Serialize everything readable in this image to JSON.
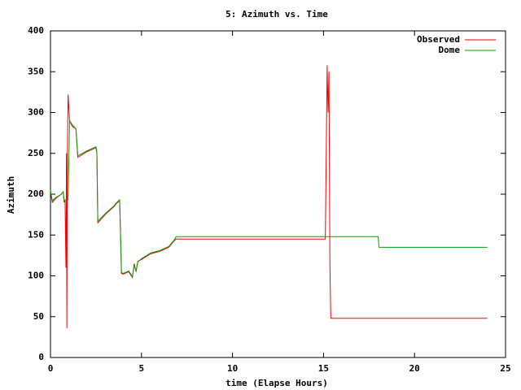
{
  "chart_data": {
    "type": "line",
    "title": "5: Azimuth vs. Time",
    "x_label": "time (Elapse Hours)",
    "y_label": "Azimuth",
    "x": [
      0,
      0.1,
      0.3,
      0.6,
      0.7,
      0.75,
      0.8,
      0.85,
      0.88,
      0.9,
      0.93,
      0.97,
      1.05,
      1.2,
      1.4,
      1.5,
      2.0,
      2.5,
      2.55,
      2.6,
      3.0,
      3.5,
      3.6,
      3.8,
      3.85,
      3.9,
      4.0,
      4.3,
      4.5,
      4.6,
      4.7,
      4.8,
      5.0,
      5.5,
      6.0,
      6.5,
      6.8,
      6.9,
      15.1,
      15.15,
      15.2,
      15.25,
      15.3,
      15.35,
      15.4,
      18.0,
      18.05,
      24
    ],
    "series": [
      {
        "name": "Observed",
        "color": "#ff0000",
        "values": [
          203,
          190,
          195,
          200,
          203,
          190,
          193,
          110,
          250,
          36,
          250,
          322,
          290,
          283,
          280,
          245,
          252,
          257,
          250,
          165,
          175,
          185,
          188,
          192,
          150,
          103,
          102,
          105,
          98,
          115,
          105,
          118,
          120,
          127,
          130,
          135,
          143,
          145,
          145,
          250,
          358,
          300,
          350,
          115,
          48,
          48,
          48,
          48
        ]
      },
      {
        "name": "Dome",
        "color": "#00a000",
        "values": [
          205,
          192,
          196,
          200,
          203,
          192,
          193,
          193,
          193,
          193,
          193,
          193,
          290,
          285,
          280,
          247,
          253,
          258,
          252,
          167,
          176,
          186,
          189,
          193,
          150,
          104,
          103,
          106,
          99,
          113,
          106,
          117,
          121,
          128,
          131,
          136,
          144,
          148,
          148,
          148,
          148,
          148,
          148,
          148,
          148,
          148,
          135,
          135
        ]
      }
    ],
    "xlim": [
      0,
      25
    ],
    "xticks": [
      0,
      5,
      10,
      15,
      20,
      25
    ],
    "ylim": [
      0,
      400
    ],
    "yticks": [
      0,
      50,
      100,
      150,
      200,
      250,
      300,
      350,
      400
    ],
    "grid": false,
    "legend": "top-right"
  }
}
